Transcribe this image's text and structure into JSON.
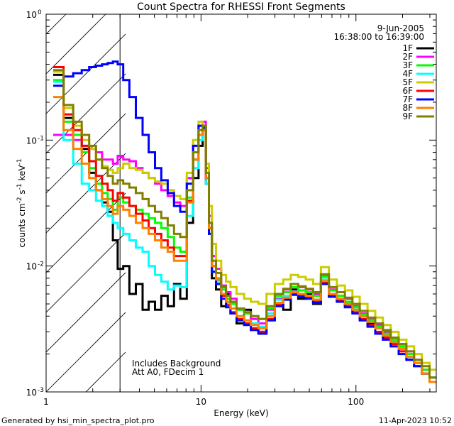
{
  "chart_data": {
    "type": "line",
    "title": "Count Spectra for RHESSI Front Segments",
    "xlabel": "Energy (keV)",
    "ylabel_base": "counts cm",
    "ylabel_exp1": "-2",
    "ylabel_mid": " s",
    "ylabel_exp2": "-1",
    "ylabel_end": " keV",
    "ylabel_exp3": "-1",
    "xscale": "log",
    "yscale": "log",
    "xlim": [
      1,
      330
    ],
    "ylim": [
      0.001,
      1
    ],
    "x_ticks": [
      {
        "value": 1,
        "label": "1"
      },
      {
        "value": 10,
        "label": "10"
      },
      {
        "value": 100,
        "label": "100"
      }
    ],
    "y_ticks": [
      {
        "value": 1,
        "base": "10",
        "exp": "0"
      },
      {
        "value": 0.1,
        "base": "10",
        "exp": "-1"
      },
      {
        "value": 0.01,
        "base": "10",
        "exp": "-2"
      },
      {
        "value": 0.001,
        "base": "10",
        "exp": "-3"
      }
    ],
    "hatched_region_keV": [
      1,
      3
    ],
    "legend_placement": "top-right",
    "date": "9-Jun-2005",
    "time_range": "16:38:00 to 16:39:00",
    "annotations": [
      "Includes Background",
      "Att A0, FDecim 1"
    ],
    "series": [
      {
        "name": "1F",
        "color": "#000000",
        "x": [
          1.2,
          1.4,
          1.6,
          1.8,
          2,
          2.2,
          2.4,
          2.6,
          2.8,
          3,
          3.3,
          3.6,
          4,
          4.4,
          4.8,
          5.3,
          5.8,
          6.4,
          7,
          7.7,
          8.5,
          9.3,
          10,
          10.5,
          11,
          11.5,
          12,
          13,
          14,
          15,
          16,
          18,
          20,
          22,
          25,
          28,
          32,
          36,
          40,
          45,
          50,
          56,
          63,
          71,
          80,
          90,
          100,
          112,
          126,
          141,
          158,
          178,
          200,
          224,
          251,
          282,
          316
        ],
        "y": [
          0.33,
          0.15,
          0.11,
          0.085,
          0.055,
          0.04,
          0.032,
          0.027,
          0.016,
          0.0095,
          0.01,
          0.006,
          0.0072,
          0.0045,
          0.0052,
          0.0045,
          0.0058,
          0.0048,
          0.0072,
          0.0055,
          0.022,
          0.05,
          0.09,
          0.12,
          0.045,
          0.018,
          0.008,
          0.0065,
          0.0048,
          0.006,
          0.0042,
          0.0035,
          0.0045,
          0.0035,
          0.003,
          0.0042,
          0.0055,
          0.0045,
          0.0065,
          0.0055,
          0.006,
          0.005,
          0.0075,
          0.0058,
          0.0052,
          0.0048,
          0.0045,
          0.004,
          0.0035,
          0.0033,
          0.0028,
          0.0025,
          0.0022,
          0.0019,
          0.0017,
          0.0014,
          0.0012
        ]
      },
      {
        "name": "2F",
        "color": "#ff00ff",
        "x": [
          1.2,
          1.4,
          1.6,
          1.8,
          2,
          2.2,
          2.4,
          2.6,
          2.8,
          3,
          3.3,
          3.6,
          4,
          4.4,
          4.8,
          5.3,
          5.8,
          6.4,
          7,
          7.7,
          8.5,
          9.3,
          10,
          10.5,
          11,
          11.5,
          12,
          13,
          14,
          15,
          16,
          18,
          20,
          22,
          25,
          28,
          32,
          36,
          40,
          45,
          50,
          56,
          63,
          71,
          80,
          90,
          100,
          112,
          126,
          141,
          158,
          178,
          200,
          224,
          251,
          282,
          316
        ],
        "y": [
          0.11,
          0.11,
          0.1,
          0.09,
          0.085,
          0.08,
          0.07,
          0.07,
          0.065,
          0.075,
          0.07,
          0.068,
          0.06,
          0.055,
          0.05,
          0.045,
          0.04,
          0.036,
          0.032,
          0.03,
          0.05,
          0.09,
          0.13,
          0.14,
          0.06,
          0.025,
          0.012,
          0.0095,
          0.007,
          0.0062,
          0.0055,
          0.0045,
          0.0042,
          0.0038,
          0.0035,
          0.0045,
          0.0055,
          0.0065,
          0.0072,
          0.0068,
          0.0065,
          0.006,
          0.0085,
          0.0065,
          0.0058,
          0.0055,
          0.0048,
          0.0042,
          0.0038,
          0.0034,
          0.003,
          0.0027,
          0.0024,
          0.0021,
          0.0018,
          0.0015,
          0.0013
        ]
      },
      {
        "name": "3F",
        "color": "#00ff00",
        "x": [
          1.2,
          1.4,
          1.6,
          1.8,
          2,
          2.2,
          2.4,
          2.6,
          2.8,
          3,
          3.3,
          3.6,
          4,
          4.4,
          4.8,
          5.3,
          5.8,
          6.4,
          7,
          7.7,
          8.5,
          9.3,
          10,
          10.5,
          11,
          11.5,
          12,
          13,
          14,
          15,
          16,
          18,
          20,
          22,
          25,
          28,
          32,
          36,
          40,
          45,
          50,
          56,
          63,
          71,
          80,
          90,
          100,
          112,
          126,
          141,
          158,
          178,
          200,
          224,
          251,
          282,
          316
        ],
        "y": [
          0.3,
          0.14,
          0.11,
          0.08,
          0.06,
          0.045,
          0.038,
          0.034,
          0.028,
          0.035,
          0.032,
          0.03,
          0.028,
          0.026,
          0.024,
          0.022,
          0.02,
          0.017,
          0.014,
          0.013,
          0.035,
          0.07,
          0.11,
          0.13,
          0.05,
          0.02,
          0.01,
          0.008,
          0.0065,
          0.0055,
          0.005,
          0.0045,
          0.0042,
          0.004,
          0.0038,
          0.0046,
          0.0058,
          0.0062,
          0.0068,
          0.0064,
          0.0062,
          0.0058,
          0.0082,
          0.0064,
          0.0058,
          0.0052,
          0.0047,
          0.0041,
          0.0037,
          0.0033,
          0.0029,
          0.0026,
          0.0023,
          0.002,
          0.0017,
          0.0015,
          0.0013
        ]
      },
      {
        "name": "4F",
        "color": "#00ffff",
        "x": [
          1.2,
          1.4,
          1.6,
          1.8,
          2,
          2.2,
          2.4,
          2.6,
          2.8,
          3,
          3.3,
          3.6,
          4,
          4.4,
          4.8,
          5.3,
          5.8,
          6.4,
          7,
          7.7,
          8.5,
          9.3,
          10,
          10.5,
          11,
          11.5,
          12,
          13,
          14,
          15,
          16,
          18,
          20,
          22,
          25,
          28,
          32,
          36,
          40,
          45,
          50,
          56,
          63,
          71,
          80,
          90,
          100,
          112,
          126,
          141,
          158,
          178,
          200,
          224,
          251,
          282,
          316
        ],
        "y": [
          0.29,
          0.1,
          0.065,
          0.045,
          0.04,
          0.033,
          0.03,
          0.025,
          0.022,
          0.02,
          0.018,
          0.016,
          0.014,
          0.013,
          0.01,
          0.0085,
          0.0075,
          0.0065,
          0.007,
          0.0068,
          0.025,
          0.06,
          0.1,
          0.12,
          0.045,
          0.018,
          0.009,
          0.0075,
          0.0058,
          0.005,
          0.0046,
          0.004,
          0.0037,
          0.0035,
          0.0033,
          0.0042,
          0.0054,
          0.0058,
          0.0062,
          0.006,
          0.0058,
          0.0054,
          0.0078,
          0.006,
          0.0055,
          0.005,
          0.0045,
          0.004,
          0.0036,
          0.0032,
          0.0028,
          0.0025,
          0.0022,
          0.0019,
          0.0017,
          0.0014,
          0.0012
        ]
      },
      {
        "name": "5F",
        "color": "#cccc00",
        "x": [
          1.2,
          1.4,
          1.6,
          1.8,
          2,
          2.2,
          2.4,
          2.6,
          2.8,
          3,
          3.3,
          3.6,
          4,
          4.4,
          4.8,
          5.3,
          5.8,
          6.4,
          7,
          7.7,
          8.5,
          9.3,
          10,
          10.5,
          11,
          11.5,
          12,
          13,
          14,
          15,
          16,
          18,
          20,
          22,
          25,
          28,
          32,
          36,
          40,
          45,
          50,
          56,
          63,
          71,
          80,
          90,
          100,
          112,
          126,
          141,
          158,
          178,
          200,
          224,
          251,
          282,
          316
        ],
        "y": [
          0.35,
          0.18,
          0.13,
          0.1,
          0.085,
          0.07,
          0.062,
          0.058,
          0.055,
          0.06,
          0.065,
          0.06,
          0.058,
          0.055,
          0.05,
          0.047,
          0.045,
          0.04,
          0.036,
          0.034,
          0.055,
          0.1,
          0.14,
          0.13,
          0.065,
          0.03,
          0.015,
          0.011,
          0.0085,
          0.0075,
          0.0068,
          0.006,
          0.0055,
          0.0052,
          0.005,
          0.006,
          0.0072,
          0.0078,
          0.0085,
          0.0082,
          0.0078,
          0.0072,
          0.0098,
          0.0078,
          0.007,
          0.0064,
          0.0057,
          0.005,
          0.0044,
          0.0039,
          0.0034,
          0.003,
          0.0026,
          0.0023,
          0.002,
          0.0017,
          0.0015
        ]
      },
      {
        "name": "6F",
        "color": "#ff0000",
        "x": [
          1.2,
          1.4,
          1.6,
          1.8,
          2,
          2.2,
          2.4,
          2.6,
          2.8,
          3,
          3.3,
          3.6,
          4,
          4.4,
          4.8,
          5.3,
          5.8,
          6.4,
          7,
          7.7,
          8.5,
          9.3,
          10,
          10.5,
          11,
          11.5,
          12,
          13,
          14,
          15,
          16,
          18,
          20,
          22,
          25,
          28,
          32,
          36,
          40,
          45,
          50,
          56,
          63,
          71,
          80,
          90,
          100,
          112,
          126,
          141,
          158,
          178,
          200,
          224,
          251,
          282,
          316
        ],
        "y": [
          0.38,
          0.16,
          0.12,
          0.09,
          0.068,
          0.052,
          0.045,
          0.04,
          0.033,
          0.038,
          0.035,
          0.03,
          0.026,
          0.023,
          0.02,
          0.018,
          0.016,
          0.014,
          0.012,
          0.012,
          0.033,
          0.07,
          0.11,
          0.12,
          0.05,
          0.02,
          0.01,
          0.0078,
          0.0058,
          0.0049,
          0.0043,
          0.0038,
          0.0035,
          0.0032,
          0.003,
          0.0038,
          0.0049,
          0.0055,
          0.006,
          0.0058,
          0.0056,
          0.0052,
          0.0074,
          0.0058,
          0.0053,
          0.0048,
          0.0043,
          0.0038,
          0.0034,
          0.003,
          0.0027,
          0.0024,
          0.0021,
          0.0018,
          0.0016,
          0.0014,
          0.0012
        ]
      },
      {
        "name": "7F",
        "color": "#0000ff",
        "x": [
          1.2,
          1.4,
          1.6,
          1.8,
          2,
          2.2,
          2.4,
          2.6,
          2.8,
          3,
          3.3,
          3.6,
          4,
          4.4,
          4.8,
          5.3,
          5.8,
          6.4,
          7,
          7.7,
          8.5,
          9.3,
          10,
          10.5,
          11,
          11.5,
          12,
          13,
          14,
          15,
          16,
          18,
          20,
          22,
          25,
          28,
          32,
          36,
          40,
          45,
          50,
          56,
          63,
          71,
          80,
          90,
          100,
          112,
          126,
          141,
          158,
          178,
          200,
          224,
          251,
          282,
          316
        ],
        "y": [
          0.27,
          0.32,
          0.34,
          0.36,
          0.38,
          0.39,
          0.4,
          0.41,
          0.42,
          0.4,
          0.3,
          0.22,
          0.15,
          0.11,
          0.08,
          0.06,
          0.048,
          0.038,
          0.03,
          0.027,
          0.045,
          0.09,
          0.13,
          0.125,
          0.05,
          0.018,
          0.009,
          0.0072,
          0.0055,
          0.0047,
          0.0042,
          0.0037,
          0.0034,
          0.0031,
          0.0029,
          0.0037,
          0.0048,
          0.0054,
          0.0059,
          0.0057,
          0.0055,
          0.0051,
          0.0072,
          0.0057,
          0.0052,
          0.0047,
          0.0042,
          0.0037,
          0.0033,
          0.0029,
          0.0026,
          0.0023,
          0.002,
          0.0018,
          0.0016,
          0.0014,
          0.0012
        ]
      },
      {
        "name": "8F",
        "color": "#ff8000",
        "x": [
          1.2,
          1.4,
          1.6,
          1.8,
          2,
          2.2,
          2.4,
          2.6,
          2.8,
          3,
          3.3,
          3.6,
          4,
          4.4,
          4.8,
          5.3,
          5.8,
          6.4,
          7,
          7.7,
          8.5,
          9.3,
          10,
          10.5,
          11,
          11.5,
          12,
          13,
          14,
          15,
          16,
          18,
          20,
          22,
          25,
          28,
          32,
          36,
          40,
          45,
          50,
          56,
          63,
          71,
          80,
          90,
          100,
          112,
          126,
          141,
          158,
          178,
          200,
          224,
          251,
          282,
          316
        ],
        "y": [
          0.22,
          0.12,
          0.085,
          0.065,
          0.05,
          0.04,
          0.034,
          0.03,
          0.026,
          0.03,
          0.028,
          0.025,
          0.022,
          0.02,
          0.018,
          0.016,
          0.014,
          0.013,
          0.011,
          0.011,
          0.032,
          0.07,
          0.11,
          0.12,
          0.05,
          0.02,
          0.01,
          0.0078,
          0.006,
          0.0052,
          0.0046,
          0.004,
          0.0037,
          0.0034,
          0.0032,
          0.004,
          0.0051,
          0.0056,
          0.0062,
          0.006,
          0.0058,
          0.0054,
          0.0076,
          0.006,
          0.0055,
          0.005,
          0.0045,
          0.004,
          0.0036,
          0.0032,
          0.0028,
          0.0025,
          0.0022,
          0.0019,
          0.0017,
          0.0014,
          0.0012
        ]
      },
      {
        "name": "9F",
        "color": "#808000",
        "x": [
          1.2,
          1.4,
          1.6,
          1.8,
          2,
          2.2,
          2.4,
          2.6,
          2.8,
          3,
          3.3,
          3.6,
          4,
          4.4,
          4.8,
          5.3,
          5.8,
          6.4,
          7,
          7.7,
          8.5,
          9.3,
          10,
          10.5,
          11,
          11.5,
          12,
          13,
          14,
          15,
          16,
          18,
          20,
          22,
          25,
          28,
          32,
          36,
          40,
          45,
          50,
          56,
          63,
          71,
          80,
          90,
          100,
          112,
          126,
          141,
          158,
          178,
          200,
          224,
          251,
          282,
          316
        ],
        "y": [
          0.36,
          0.19,
          0.14,
          0.11,
          0.09,
          0.07,
          0.06,
          0.052,
          0.045,
          0.048,
          0.045,
          0.042,
          0.038,
          0.034,
          0.03,
          0.027,
          0.024,
          0.021,
          0.018,
          0.017,
          0.04,
          0.08,
          0.12,
          0.13,
          0.055,
          0.022,
          0.011,
          0.0088,
          0.0068,
          0.0058,
          0.0052,
          0.0046,
          0.0043,
          0.004,
          0.0038,
          0.0048,
          0.006,
          0.0066,
          0.0072,
          0.0069,
          0.0066,
          0.0062,
          0.0086,
          0.0068,
          0.0062,
          0.0056,
          0.005,
          0.0044,
          0.0039,
          0.0035,
          0.0031,
          0.0027,
          0.0024,
          0.0021,
          0.0018,
          0.0016,
          0.0013
        ]
      }
    ]
  },
  "footer": {
    "generated_by": "Generated by hsi_min_spectra_plot.pro",
    "timestamp": "11-Apr-2023 10:52"
  }
}
